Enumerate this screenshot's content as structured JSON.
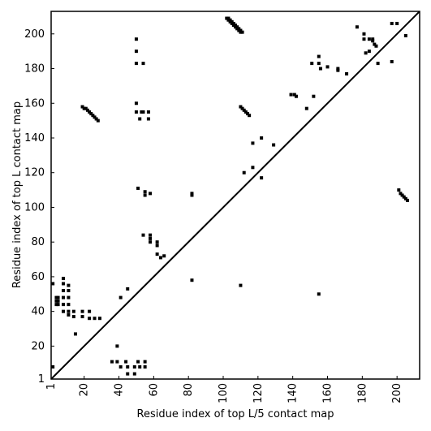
{
  "chart_data": {
    "type": "scatter",
    "xlabel": "Residue index of top L/5 contact map",
    "ylabel": "Residue index of top L contact map",
    "xlim": [
      1,
      213
    ],
    "ylim": [
      1,
      213
    ],
    "xticks": [
      1,
      20,
      40,
      60,
      80,
      100,
      120,
      140,
      160,
      180,
      200
    ],
    "yticks": [
      1,
      20,
      40,
      60,
      80,
      100,
      120,
      140,
      160,
      180,
      200
    ],
    "color": "#000000",
    "x": [
      2,
      2,
      4,
      4,
      4,
      5,
      5,
      5,
      8,
      8,
      8,
      8,
      8,
      8,
      11,
      11,
      11,
      11,
      11,
      11,
      14,
      14,
      15,
      19,
      19,
      23,
      23,
      26,
      29,
      39,
      41,
      45,
      36,
      39,
      41,
      44,
      45,
      45,
      49,
      49,
      51,
      52,
      55,
      55,
      82,
      110,
      155,
      50,
      50,
      50,
      54,
      50,
      50,
      53,
      54,
      57,
      52,
      57,
      51,
      55,
      55,
      58,
      82,
      82,
      54,
      58,
      58,
      58,
      62,
      62,
      62,
      64,
      66,
      19,
      20,
      21,
      22,
      23,
      24,
      25,
      26,
      27,
      28,
      102,
      103,
      103,
      104,
      104,
      105,
      105,
      106,
      106,
      107,
      107,
      108,
      108,
      109,
      109,
      110,
      110,
      111,
      110,
      111,
      112,
      113,
      114,
      115,
      112,
      117,
      117,
      122,
      122,
      129,
      139,
      141,
      142,
      148,
      152,
      151,
      155,
      156,
      155,
      160,
      166,
      166,
      171,
      177,
      181,
      181,
      184,
      186,
      186,
      182,
      184,
      187,
      188,
      189,
      197,
      197,
      200,
      205,
      201,
      202,
      203,
      204,
      205,
      206
    ],
    "y": [
      8,
      56,
      44,
      46,
      48,
      44,
      46,
      48,
      40,
      44,
      48,
      52,
      56,
      59,
      38,
      40,
      44,
      48,
      52,
      55,
      37,
      40,
      27,
      37,
      40,
      36,
      40,
      36,
      36,
      20,
      48,
      53,
      11,
      11,
      8,
      11,
      4,
      8,
      4,
      8,
      11,
      8,
      11,
      8,
      58,
      55,
      50,
      197,
      190,
      183,
      183,
      160,
      155,
      155,
      155,
      155,
      151,
      151,
      111,
      109,
      107,
      108,
      108,
      107,
      84,
      84,
      82,
      80,
      80,
      78,
      73,
      71,
      72,
      158,
      157,
      157,
      156,
      155,
      154,
      153,
      152,
      151,
      150,
      209,
      209,
      208,
      208,
      207,
      207,
      206,
      206,
      205,
      205,
      204,
      204,
      203,
      203,
      202,
      202,
      201,
      201,
      158,
      157,
      156,
      155,
      154,
      153,
      120,
      137,
      123,
      140,
      117,
      136,
      165,
      165,
      164,
      157,
      164,
      183,
      187,
      180,
      183,
      181,
      179,
      180,
      177,
      204,
      200,
      197,
      197,
      197,
      196,
      189,
      190,
      194,
      193,
      183,
      206,
      184,
      206,
      199,
      110,
      108,
      107,
      106,
      105,
      104
    ]
  }
}
